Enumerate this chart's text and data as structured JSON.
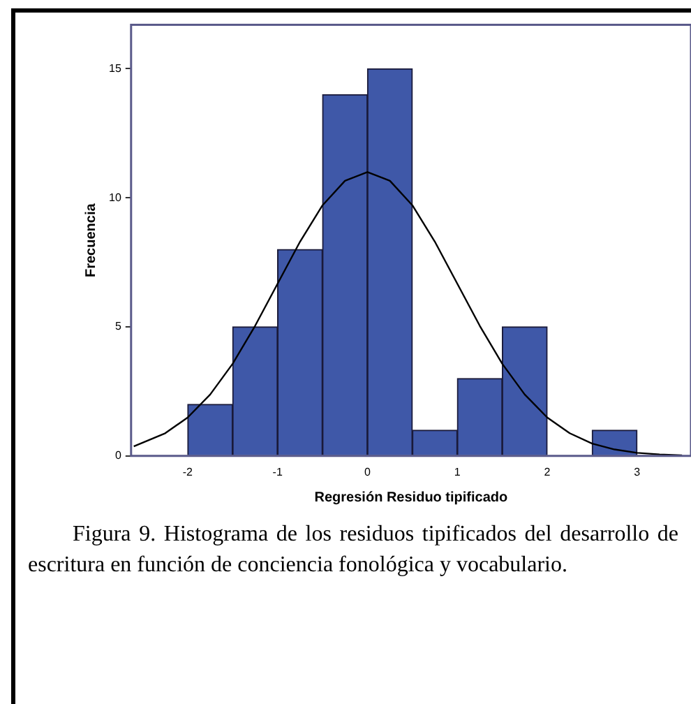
{
  "chart_data": {
    "type": "histogram",
    "xlabel": "Regresión Residuo tipificado",
    "ylabel": "Frecuencia",
    "bins": [
      -2,
      -1.5,
      -1,
      -0.5,
      0,
      0.5,
      1,
      1.5,
      2,
      2.5,
      3
    ],
    "values": [
      2,
      5,
      8,
      14,
      15,
      1,
      3,
      5,
      0,
      1
    ],
    "color": "#3f58a8",
    "series": [
      {
        "type": "line",
        "color": "#000000",
        "x": [
          -2.6,
          -2.25,
          -2,
          -1.75,
          -1.5,
          -1.25,
          -1,
          -0.75,
          -0.5,
          -0.25,
          0,
          0.25,
          0.5,
          0.75,
          1,
          1.25,
          1.5,
          1.75,
          2,
          2.25,
          2.5,
          2.75,
          3,
          3.25,
          3.5
        ],
        "values": [
          0.37,
          0.88,
          1.49,
          2.38,
          3.57,
          5.04,
          6.67,
          8.3,
          9.71,
          10.66,
          11,
          10.66,
          9.71,
          8.3,
          6.67,
          5.04,
          3.57,
          2.38,
          1.49,
          0.88,
          0.48,
          0.25,
          0.12,
          0.06,
          0.02
        ]
      }
    ],
    "xlim": [
      -2.63,
      3.6
    ],
    "xticks": [
      -2,
      -1,
      0,
      1,
      2,
      3
    ],
    "ylim": [
      0,
      16.7
    ],
    "yticks": [
      0,
      5,
      10,
      15
    ],
    "marker": "none",
    "annotations": [
      "Figura 9. Histograma de los residuos tipificados del desarrollo de escritura en función de conciencia fonológica y vocabulario."
    ]
  }
}
